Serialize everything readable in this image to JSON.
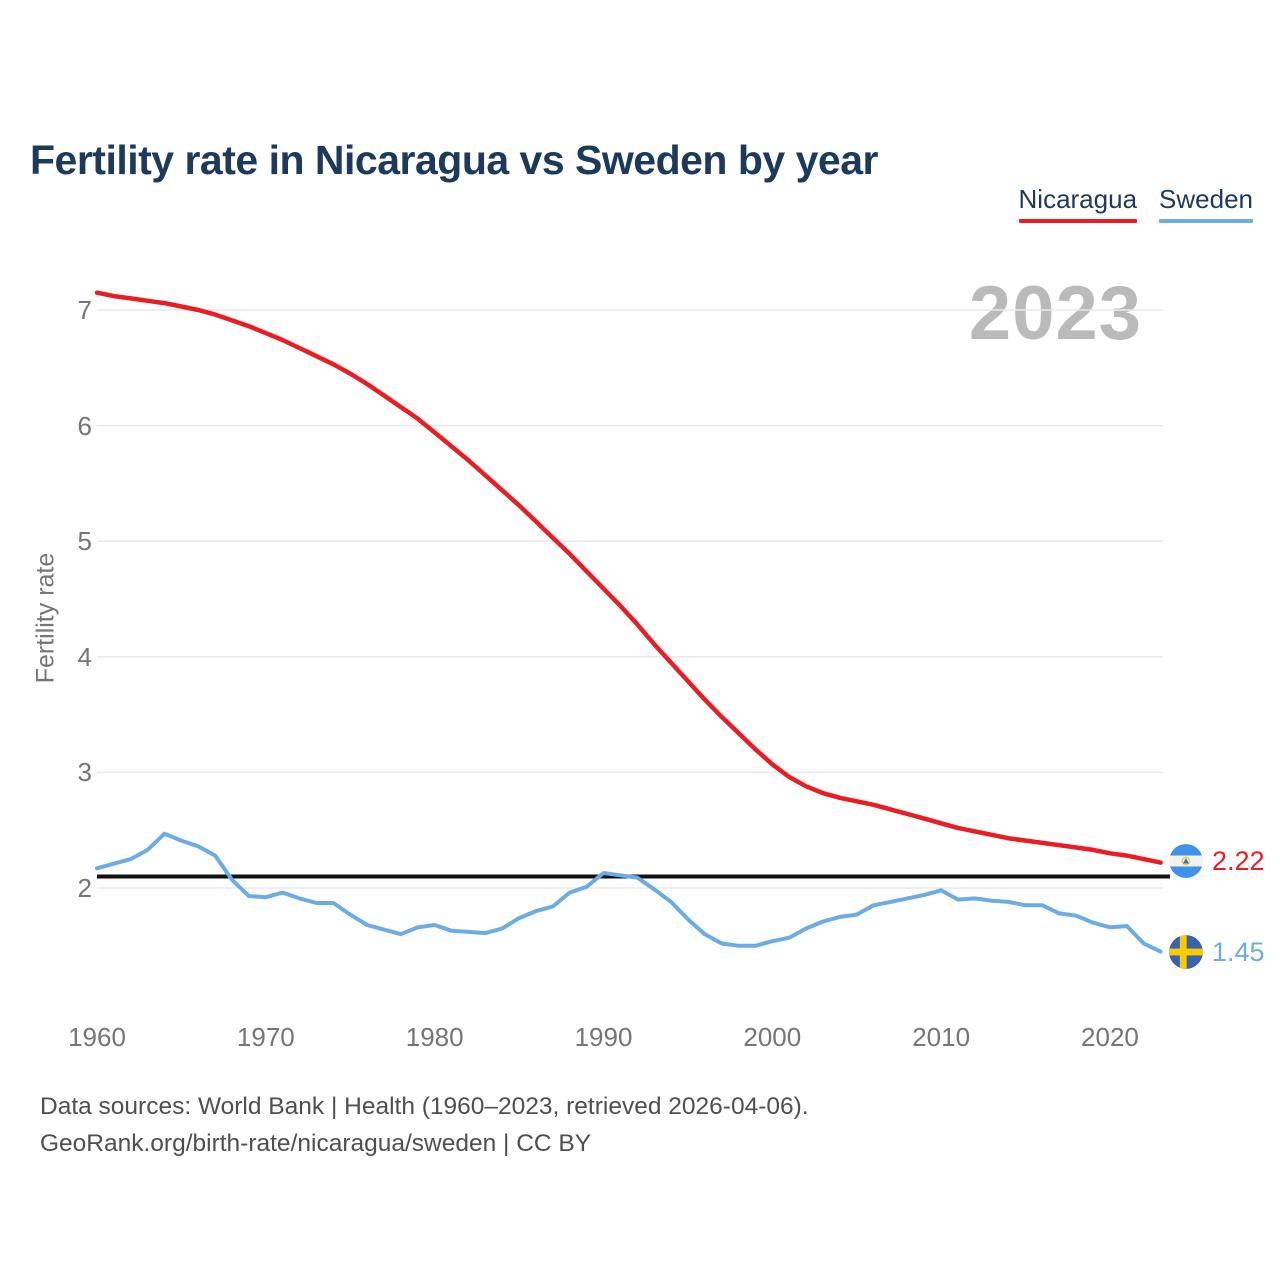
{
  "title": "Fertility rate in Nicaragua vs Sweden by year",
  "watermark": "2023",
  "legend": [
    {
      "label": "Nicaragua",
      "color": "#ec1c24"
    },
    {
      "label": "Sweden",
      "color": "#6cace4"
    }
  ],
  "end_labels": [
    {
      "series": "Nicaragua",
      "value": "2.22"
    },
    {
      "series": "Sweden",
      "value": "1.45"
    }
  ],
  "footer": {
    "line1": "Data sources: World Bank | Health (1960–2023, retrieved 2026-04-06).",
    "line2": "GeoRank.org/birth-rate/nicaragua/sweden | CC BY"
  },
  "chart_data": {
    "type": "line",
    "title": "Fertility rate in Nicaragua vs Sweden by year",
    "xlabel": "",
    "ylabel": "Fertility rate",
    "xlim": [
      1960,
      2023
    ],
    "ylim": [
      1.3,
      7.35
    ],
    "x_ticks": [
      1960,
      1970,
      1980,
      1990,
      2000,
      2010,
      2020
    ],
    "y_ticks": [
      2,
      3,
      4,
      5,
      6,
      7
    ],
    "grid": "horizontal",
    "legend_position": "top-right",
    "reference_line": {
      "value": 2.1,
      "color": "#111111"
    },
    "x": [
      1960,
      1961,
      1962,
      1963,
      1964,
      1965,
      1966,
      1967,
      1968,
      1969,
      1970,
      1971,
      1972,
      1973,
      1974,
      1975,
      1976,
      1977,
      1978,
      1979,
      1980,
      1981,
      1982,
      1983,
      1984,
      1985,
      1986,
      1987,
      1988,
      1989,
      1990,
      1991,
      1992,
      1993,
      1994,
      1995,
      1996,
      1997,
      1998,
      1999,
      2000,
      2001,
      2002,
      2003,
      2004,
      2005,
      2006,
      2007,
      2008,
      2009,
      2010,
      2011,
      2012,
      2013,
      2014,
      2015,
      2016,
      2017,
      2018,
      2019,
      2020,
      2021,
      2022,
      2023
    ],
    "series": [
      {
        "name": "Nicaragua",
        "color": "#ec1c24",
        "end_value": 2.22,
        "values": [
          7.15,
          7.12,
          7.1,
          7.08,
          7.06,
          7.03,
          7.0,
          6.96,
          6.91,
          6.86,
          6.8,
          6.74,
          6.67,
          6.6,
          6.53,
          6.45,
          6.36,
          6.26,
          6.16,
          6.06,
          5.94,
          5.82,
          5.7,
          5.57,
          5.44,
          5.31,
          5.17,
          5.03,
          4.89,
          4.74,
          4.59,
          4.44,
          4.28,
          4.11,
          3.95,
          3.79,
          3.63,
          3.48,
          3.34,
          3.2,
          3.07,
          2.96,
          2.88,
          2.82,
          2.78,
          2.75,
          2.72,
          2.68,
          2.64,
          2.6,
          2.56,
          2.52,
          2.49,
          2.46,
          2.43,
          2.41,
          2.39,
          2.37,
          2.35,
          2.33,
          2.3,
          2.28,
          2.25,
          2.22
        ]
      },
      {
        "name": "Sweden",
        "color": "#6cace4",
        "end_value": 1.45,
        "values": [
          2.17,
          2.21,
          2.25,
          2.33,
          2.47,
          2.41,
          2.36,
          2.28,
          2.07,
          1.93,
          1.92,
          1.96,
          1.91,
          1.87,
          1.87,
          1.77,
          1.68,
          1.64,
          1.6,
          1.66,
          1.68,
          1.63,
          1.62,
          1.61,
          1.65,
          1.74,
          1.8,
          1.84,
          1.96,
          2.01,
          2.13,
          2.11,
          2.09,
          1.99,
          1.88,
          1.73,
          1.6,
          1.52,
          1.5,
          1.5,
          1.54,
          1.57,
          1.65,
          1.71,
          1.75,
          1.77,
          1.85,
          1.88,
          1.91,
          1.94,
          1.98,
          1.9,
          1.91,
          1.89,
          1.88,
          1.85,
          1.85,
          1.78,
          1.76,
          1.7,
          1.66,
          1.67,
          1.52,
          1.45
        ]
      }
    ]
  }
}
